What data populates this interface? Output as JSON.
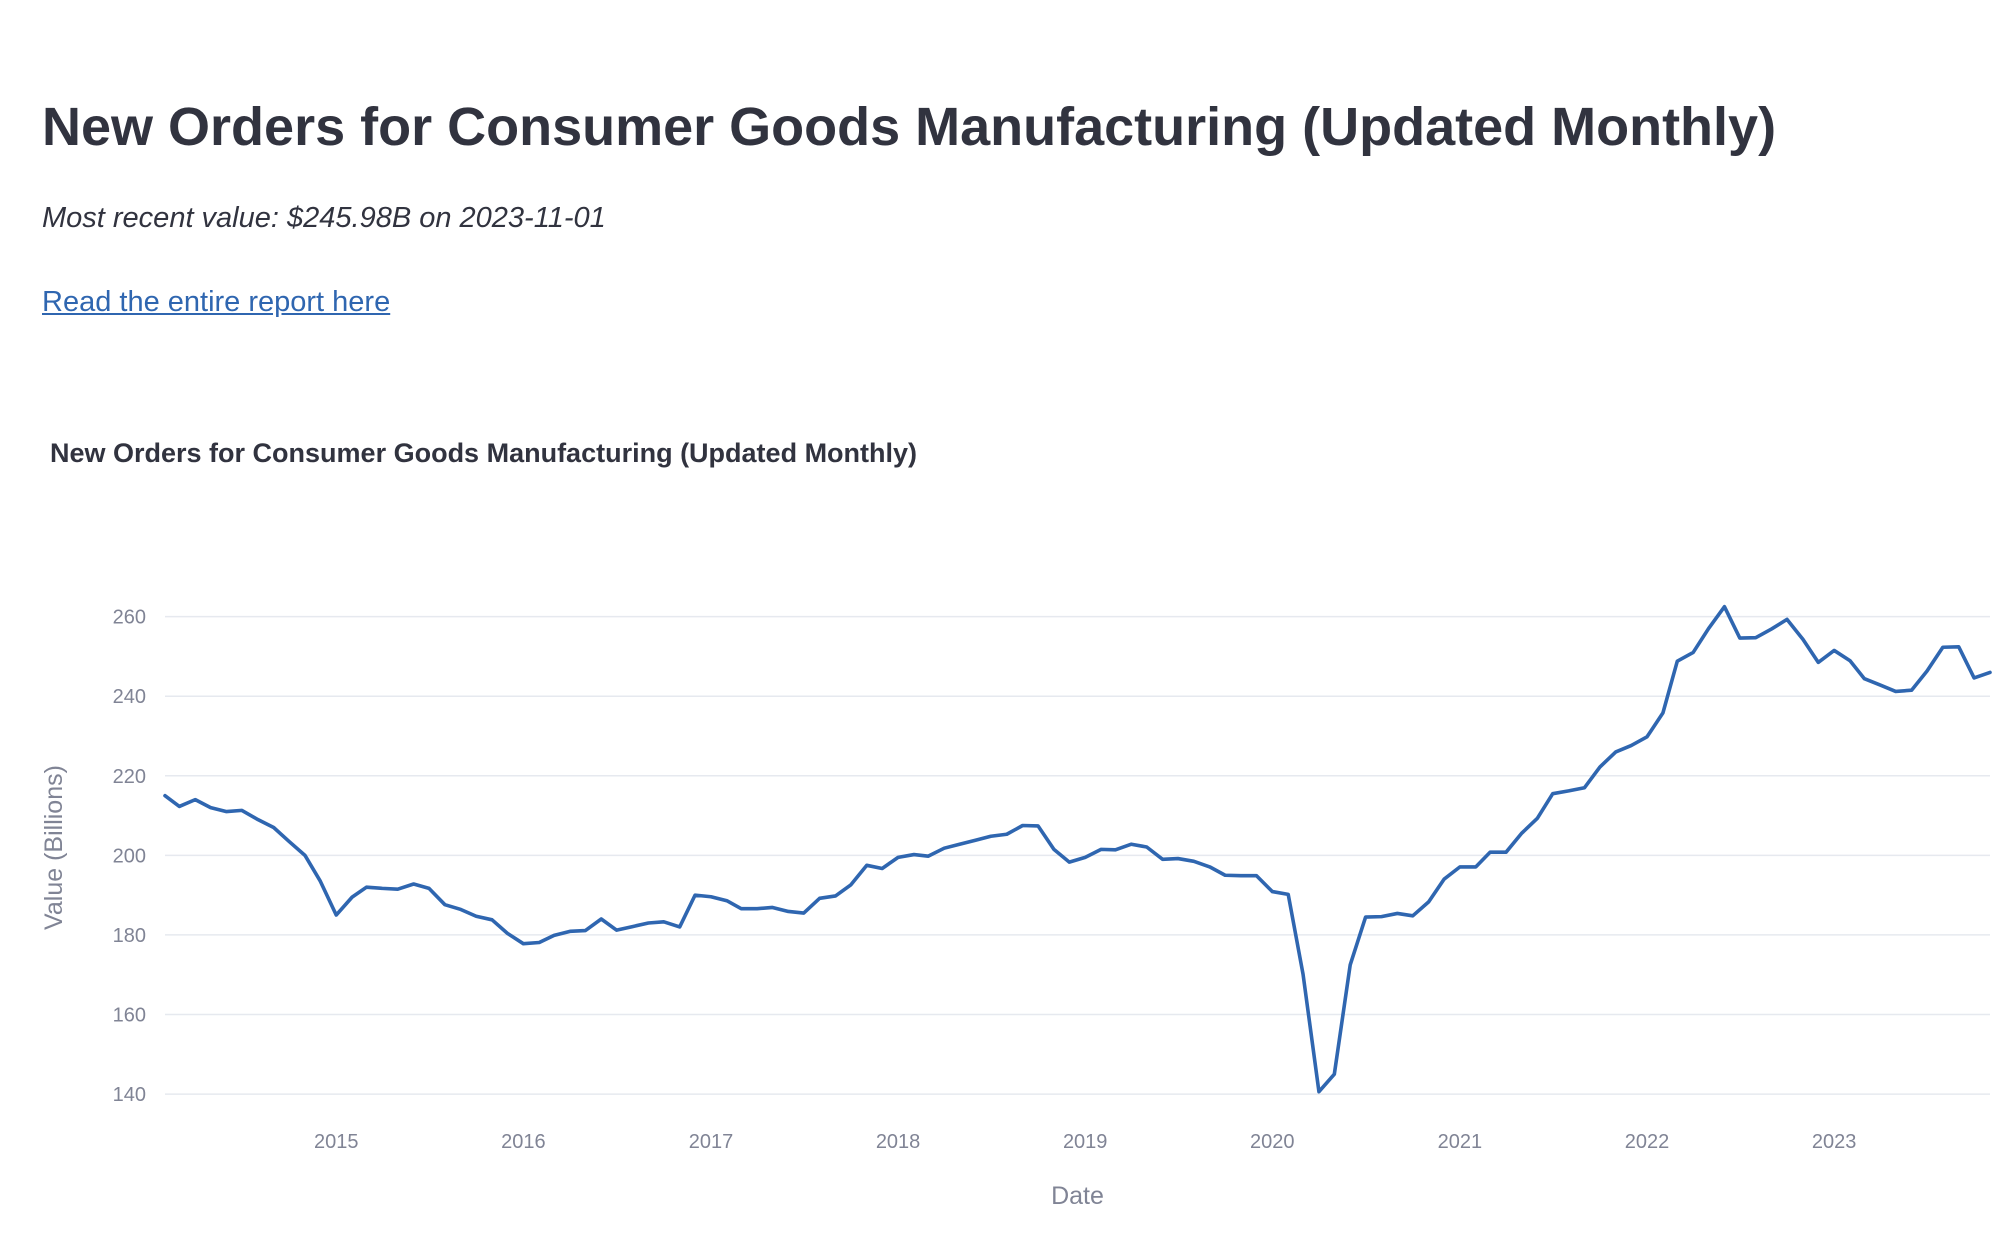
{
  "header": {
    "title": "New Orders for Consumer Goods Manufacturing (Updated Monthly)",
    "subtitle": "Most recent value: $245.98B on 2023-11-01",
    "link_text": "Read the entire report here"
  },
  "colors": {
    "line": "#2f66b0",
    "link": "#2f66b0",
    "text": "#31333f",
    "axis_text": "#808495",
    "grid": "#e6e9ef"
  },
  "chart_data": {
    "type": "line",
    "title": "New Orders for Consumer Goods Manufacturing (Updated Monthly)",
    "xlabel": "Date",
    "ylabel": "Value (Billions)",
    "xlim": [
      "2014-02-01",
      "2023-11-01"
    ],
    "ylim": [
      136,
      278
    ],
    "grid": true,
    "x_ticks": [
      "2015",
      "2016",
      "2017",
      "2018",
      "2019",
      "2020",
      "2021",
      "2022",
      "2023"
    ],
    "y_ticks": [
      140,
      160,
      180,
      200,
      220,
      240,
      260
    ],
    "series": [
      {
        "x": [
          "2014-02-01",
          "2014-03-01",
          "2014-04-01",
          "2014-05-01",
          "2014-06-01",
          "2014-07-01",
          "2014-08-01",
          "2014-09-01",
          "2014-10-01",
          "2014-11-01",
          "2014-12-01",
          "2015-01-01",
          "2015-02-01",
          "2015-03-01",
          "2015-04-01",
          "2015-05-01",
          "2015-06-01",
          "2015-07-01",
          "2015-08-01",
          "2015-09-01",
          "2015-10-01",
          "2015-11-01",
          "2015-12-01",
          "2016-01-01",
          "2016-02-01",
          "2016-03-01",
          "2016-04-01",
          "2016-05-01",
          "2016-06-01",
          "2016-07-01",
          "2016-08-01",
          "2016-09-01",
          "2016-10-01",
          "2016-11-01",
          "2016-12-01",
          "2017-01-01",
          "2017-02-01",
          "2017-03-01",
          "2017-04-01",
          "2017-05-01",
          "2017-06-01",
          "2017-07-01",
          "2017-08-01",
          "2017-09-01",
          "2017-10-01",
          "2017-11-01",
          "2017-12-01",
          "2018-01-01",
          "2018-02-01",
          "2018-03-01",
          "2018-04-01",
          "2018-05-01",
          "2018-06-01",
          "2018-07-01",
          "2018-08-01",
          "2018-09-01",
          "2018-10-01",
          "2018-11-01",
          "2018-12-01",
          "2019-01-01",
          "2019-02-01",
          "2019-03-01",
          "2019-04-01",
          "2019-05-01",
          "2019-06-01",
          "2019-07-01",
          "2019-08-01",
          "2019-09-01",
          "2019-10-01",
          "2019-11-01",
          "2019-12-01",
          "2020-01-01",
          "2020-02-01",
          "2020-03-01",
          "2020-04-01",
          "2020-05-01",
          "2020-06-01",
          "2020-07-01",
          "2020-08-01",
          "2020-09-01",
          "2020-10-01",
          "2020-11-01",
          "2020-12-01",
          "2021-01-01",
          "2021-02-01",
          "2021-03-01",
          "2021-04-01",
          "2021-05-01",
          "2021-06-01",
          "2021-07-01",
          "2021-08-01",
          "2021-09-01",
          "2021-10-01",
          "2021-11-01",
          "2021-12-01",
          "2022-01-01",
          "2022-02-01",
          "2022-03-01",
          "2022-04-01",
          "2022-05-01",
          "2022-06-01",
          "2022-07-01",
          "2022-08-01",
          "2022-09-01",
          "2022-10-01",
          "2022-11-01",
          "2022-12-01",
          "2023-01-01",
          "2023-02-01",
          "2023-03-01",
          "2023-04-01",
          "2023-05-01",
          "2023-06-01",
          "2023-07-01",
          "2023-08-01",
          "2023-09-01",
          "2023-10-01",
          "2023-11-01"
        ],
        "values": [
          215,
          212.3,
          214,
          212,
          211,
          211.3,
          209,
          207,
          203.5,
          200,
          193.5,
          185,
          189.5,
          192,
          191.7,
          191.5,
          192.8,
          191.7,
          187.6,
          186.4,
          184.7,
          183.8,
          180.4,
          177.8,
          178.1,
          179.9,
          180.9,
          181.1,
          184,
          181.2,
          182.1,
          183,
          183.3,
          182,
          190,
          189.6,
          188.6,
          186.6,
          186.6,
          186.9,
          185.9,
          185.5,
          189.2,
          189.8,
          192.6,
          197.5,
          196.7,
          199.5,
          200.2,
          199.8,
          201.8,
          202.8,
          203.8,
          204.8,
          205.3,
          207.5,
          207.4,
          201.5,
          198.3,
          199.5,
          201.5,
          201.4,
          202.8,
          202.1,
          199,
          199.2,
          198.5,
          197.1,
          195,
          194.9,
          194.9,
          190.9,
          190.2,
          170.1,
          140.6,
          145,
          172.5,
          184.5,
          184.6,
          185.4,
          184.8,
          188.3,
          194,
          197.1,
          197.1,
          200.8,
          200.8,
          205.5,
          209.3,
          215.5,
          216.2,
          217,
          222.2,
          226,
          227.6,
          229.8,
          235.8,
          248.8,
          251,
          257,
          262.5,
          254.6,
          254.7,
          256.9,
          259.3,
          254.3,
          248.5,
          251.5,
          248.9,
          244.4,
          242.8,
          241.2,
          241.5,
          246.3,
          252.3,
          252.4,
          244.6,
          245.98
        ]
      }
    ]
  }
}
